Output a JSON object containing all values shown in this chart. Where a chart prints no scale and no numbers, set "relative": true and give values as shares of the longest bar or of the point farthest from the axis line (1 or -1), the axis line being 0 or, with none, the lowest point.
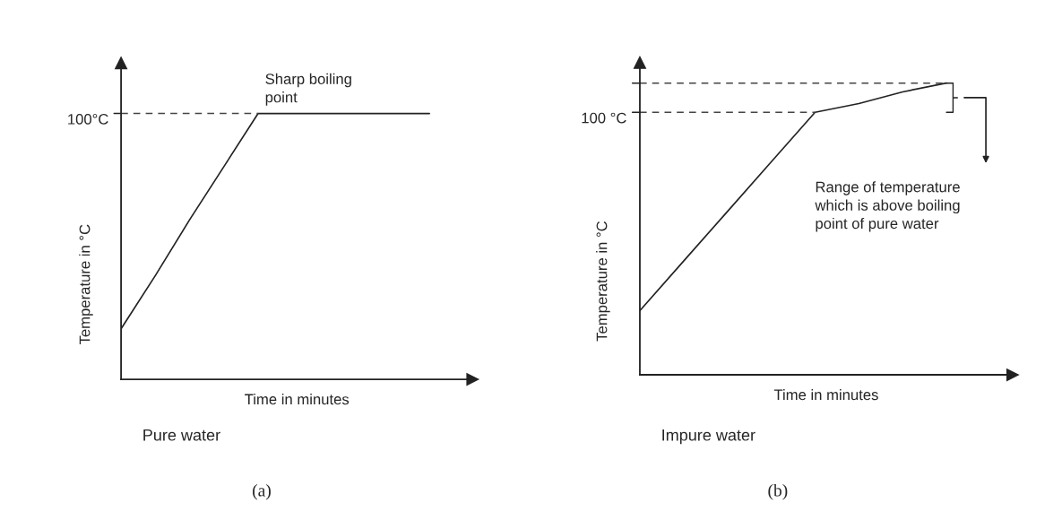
{
  "chart_data": [
    {
      "type": "line",
      "relative": true,
      "title": "Pure water",
      "subtitle": "(a)",
      "xlabel": "Time in minutes",
      "ylabel": "Temperature in °C",
      "categories": [
        null,
        null,
        null,
        null,
        null,
        null,
        null,
        null,
        null,
        null
      ],
      "series": [
        {
          "color": "#222222",
          "values": [
            0.19,
            0.39,
            0.6,
            0.8,
            1,
            1,
            1,
            1,
            1,
            1
          ]
        }
      ],
      "ref_lines": [
        {
          "axis": "y",
          "value": 1,
          "label": "100°C",
          "line_style": "dashed",
          "color": "#444444"
        }
      ],
      "annotations": [
        "Sharp boiling\npoint"
      ]
    },
    {
      "type": "line",
      "relative": true,
      "title": "Impure water",
      "subtitle": "(b)",
      "xlabel": "Time in minutes",
      "ylabel": "Temperature in °C",
      "categories": [
        null,
        null,
        null,
        null,
        null,
        null,
        null,
        null
      ],
      "series": [
        {
          "color": "#222222",
          "values": [
            0.22,
            0.39,
            0.56,
            0.73,
            0.9,
            0.93,
            0.97,
            1
          ]
        }
      ],
      "ref_lines": [
        {
          "axis": "y",
          "value": 0.9,
          "label": "100 °C",
          "line_style": "dashed",
          "color": "#444444"
        },
        {
          "axis": "y",
          "value": 1,
          "line_style": "dashed",
          "color": "#444444"
        }
      ],
      "annotations": [
        "Range of temperature\nwhich is above boiling\npoint of pure water"
      ]
    }
  ]
}
